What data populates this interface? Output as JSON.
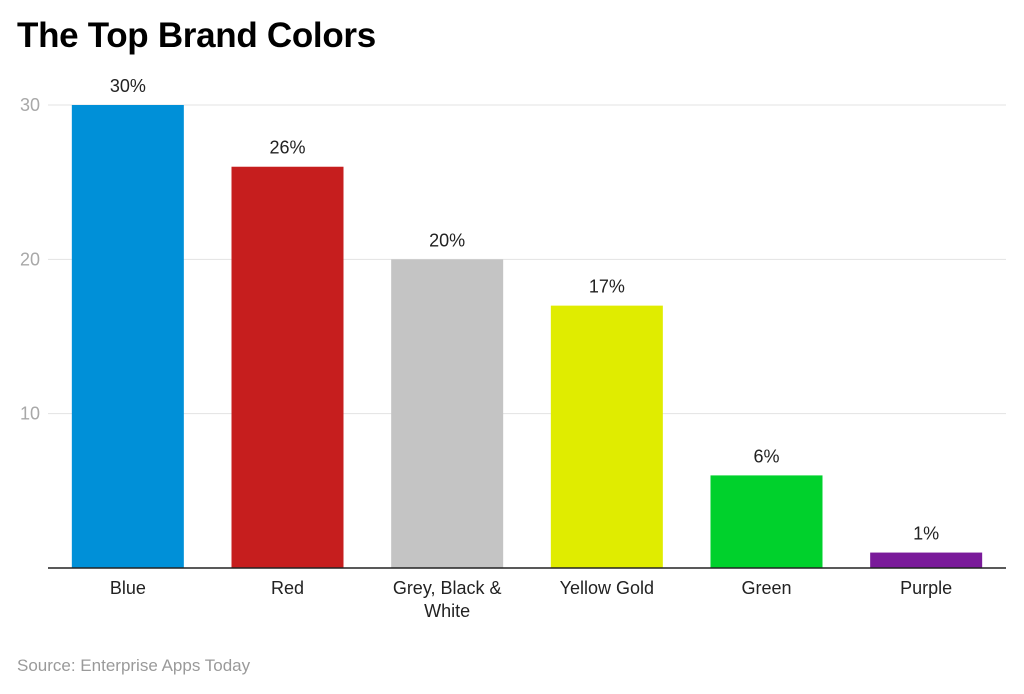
{
  "chart_data": {
    "type": "bar",
    "title": "The Top Brand Colors",
    "categories": [
      "Blue",
      "Red",
      "Grey, Black & White",
      "Yellow Gold",
      "Green",
      "Purple"
    ],
    "category_lines": [
      [
        "Blue"
      ],
      [
        "Red"
      ],
      [
        "Grey, Black &",
        "White"
      ],
      [
        "Yellow Gold"
      ],
      [
        "Green"
      ],
      [
        "Purple"
      ]
    ],
    "values": [
      30,
      26,
      20,
      17,
      6,
      1
    ],
    "data_labels": [
      "30%",
      "26%",
      "20%",
      "17%",
      "6%",
      "1%"
    ],
    "colors": [
      "#0090d8",
      "#c61e1e",
      "#c4c4c4",
      "#e0ec00",
      "#00d12c",
      "#7a1a9a"
    ],
    "xlabel": "",
    "ylabel": "",
    "ylim": [
      0,
      30
    ],
    "yticks": [
      10,
      20,
      30
    ],
    "ytick_labels": [
      "10",
      "20",
      "30"
    ],
    "grid": true,
    "legend": "none"
  },
  "source": "Source: Enterprise Apps Today"
}
